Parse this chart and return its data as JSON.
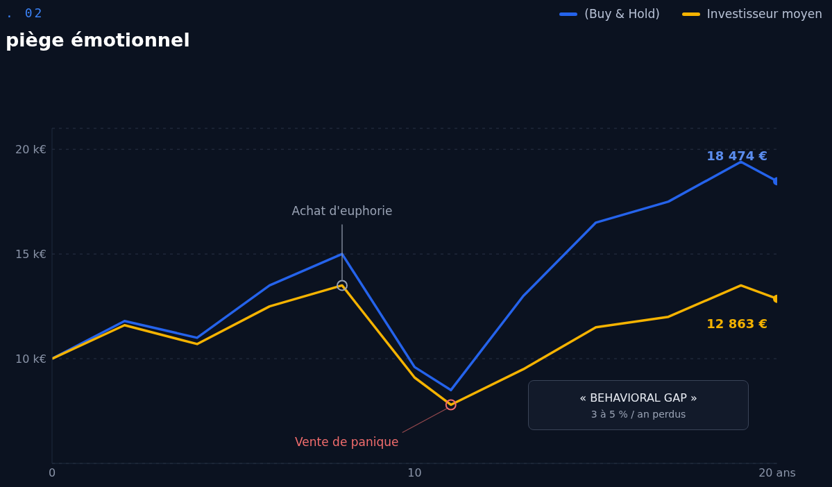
{
  "chart_data": {
    "type": "line",
    "title": "piège émotionnel",
    "x": [
      0,
      2,
      4,
      6,
      8,
      10,
      11,
      13,
      15,
      17,
      19,
      20
    ],
    "xlim": [
      0,
      20
    ],
    "xticks": [
      0,
      10,
      {
        "value": 20,
        "label": "20 ans"
      }
    ],
    "ylim": [
      5000,
      21000
    ],
    "yticks": [
      {
        "value": 10000,
        "label": "10 k€"
      },
      {
        "value": 15000,
        "label": "15 k€"
      },
      {
        "value": 20000,
        "label": "20 k€"
      }
    ],
    "series": [
      {
        "name": "(Buy & Hold)",
        "color": "#2563eb",
        "values": [
          10000,
          11800,
          11000,
          13500,
          15000,
          9600,
          8500,
          13000,
          16500,
          17500,
          19400,
          18474
        ],
        "value_labels": [
          null,
          null,
          null,
          null,
          null,
          null,
          null,
          null,
          null,
          null,
          null,
          "18 474 €"
        ]
      },
      {
        "name": "Investisseur moyen",
        "color": "#f5b301",
        "values": [
          10000,
          11600,
          10700,
          12500,
          13500,
          9100,
          7800,
          9500,
          11500,
          12000,
          13500,
          12863
        ],
        "value_labels": [
          null,
          null,
          null,
          null,
          null,
          null,
          null,
          null,
          null,
          null,
          null,
          "12 863 €"
        ]
      }
    ],
    "annotations": [
      ". 02",
      {
        "text": "Achat d'euphorie",
        "x": 8,
        "y": 13500
      },
      {
        "text": "Vente de panique",
        "x": 11,
        "y": 7800
      },
      "« BEHAVIORAL GAP »",
      "3 à 5 % / an perdus"
    ],
    "grid": "y",
    "legend": "top right",
    "marker": "none",
    "line_style": "solid"
  }
}
